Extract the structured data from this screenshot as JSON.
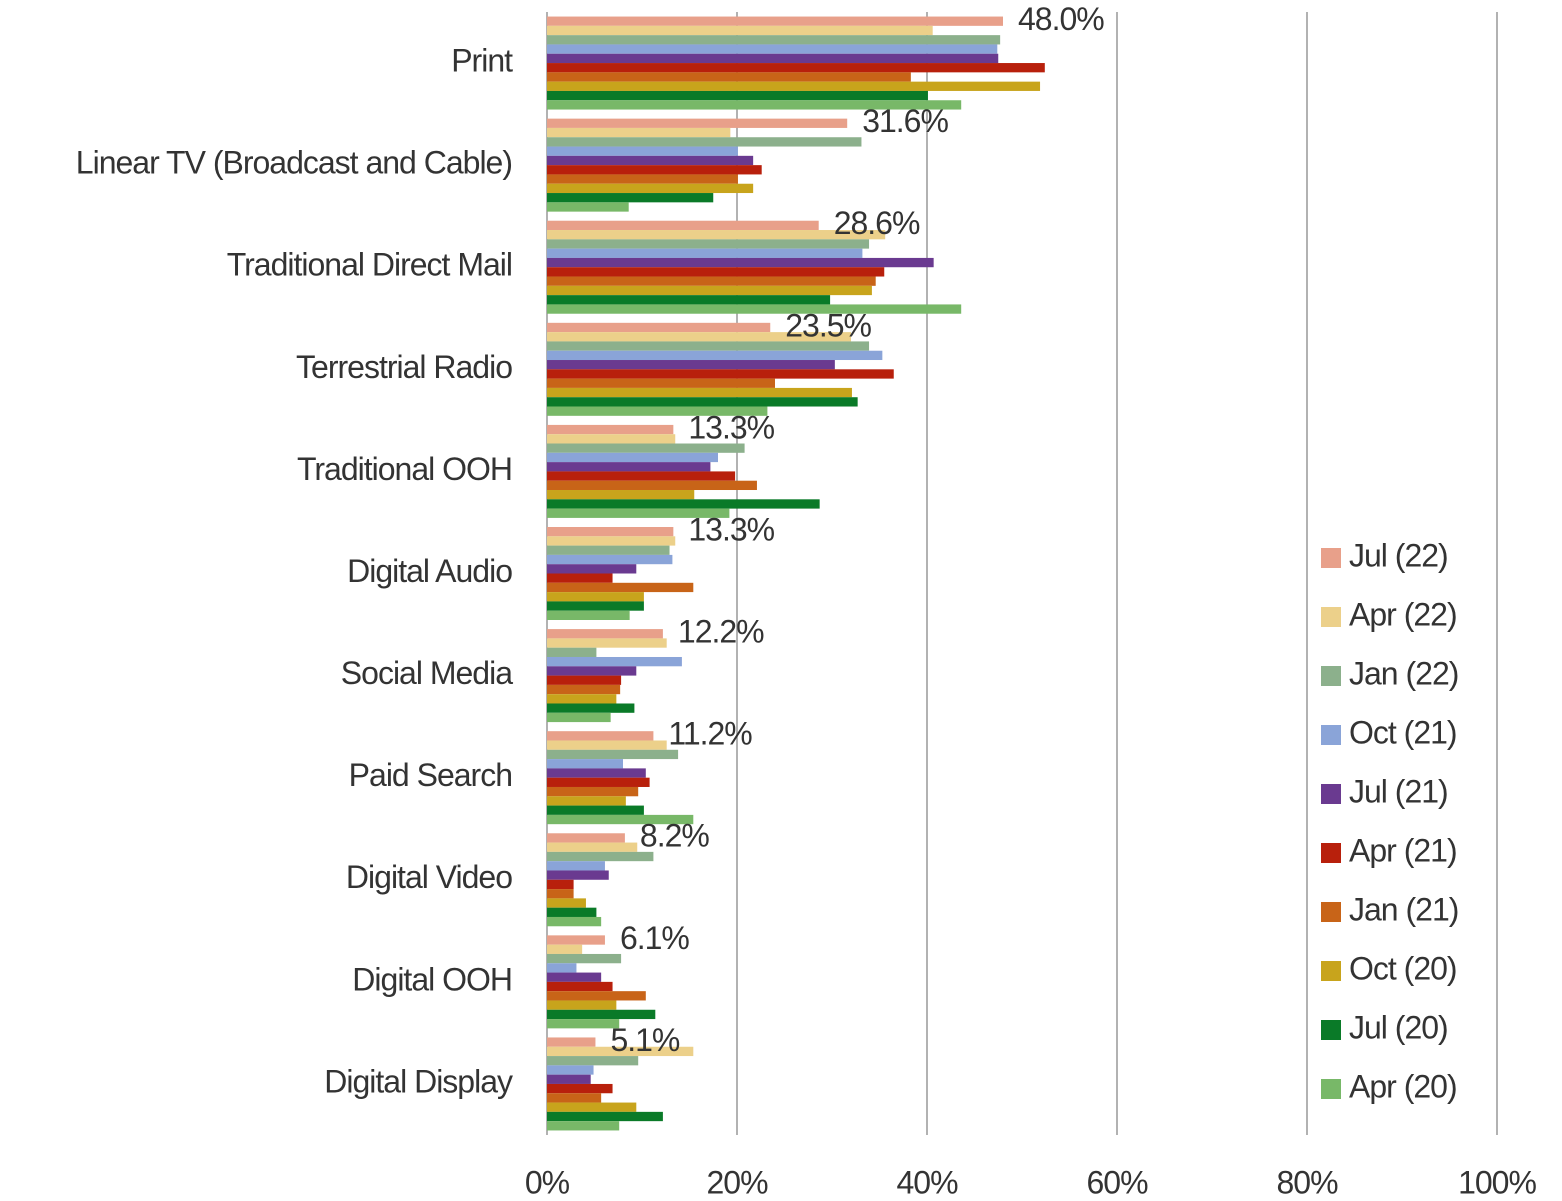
{
  "chart_data": {
    "type": "bar",
    "orientation": "horizontal",
    "categories": [
      "Print",
      "Linear TV (Broadcast and Cable)",
      "Traditional Direct Mail",
      "Terrestrial Radio",
      "Traditional OOH",
      "Digital Audio",
      "Social Media",
      "Paid Search",
      "Digital Video",
      "Digital OOH",
      "Digital Display"
    ],
    "series": [
      {
        "name": "Jul (22)",
        "color": "#e8a08a",
        "values": [
          48.0,
          31.6,
          28.6,
          23.5,
          13.3,
          13.3,
          12.2,
          11.2,
          8.2,
          6.1,
          5.1
        ],
        "value_labels": [
          "48.0%",
          "31.6%",
          "28.6%",
          "23.5%",
          "13.3%",
          "13.3%",
          "12.2%",
          "11.2%",
          "8.2%",
          "6.1%",
          "5.1%"
        ]
      },
      {
        "name": "Apr (22)",
        "color": "#ecd08a",
        "values": [
          40.6,
          19.3,
          35.6,
          32.0,
          13.5,
          13.5,
          12.6,
          12.6,
          9.5,
          3.7,
          15.4
        ]
      },
      {
        "name": "Jan (22)",
        "color": "#8cb08c",
        "values": [
          47.7,
          33.1,
          33.9,
          33.9,
          20.8,
          12.9,
          5.2,
          13.8,
          11.2,
          7.8,
          9.6
        ]
      },
      {
        "name": "Oct (21)",
        "color": "#8aa4d8",
        "values": [
          47.4,
          20.1,
          33.2,
          35.3,
          18.0,
          13.2,
          14.2,
          8.0,
          6.1,
          3.1,
          4.9
        ]
      },
      {
        "name": "Jul (21)",
        "color": "#6a3a90",
        "values": [
          47.5,
          21.7,
          40.7,
          30.3,
          17.2,
          9.4,
          9.4,
          10.4,
          6.5,
          5.7,
          4.6
        ]
      },
      {
        "name": "Apr (21)",
        "color": "#b8200c",
        "values": [
          52.4,
          22.6,
          35.5,
          36.5,
          19.8,
          6.9,
          7.8,
          10.8,
          2.8,
          6.9,
          6.9
        ]
      },
      {
        "name": "Jan (21)",
        "color": "#c86418",
        "values": [
          38.3,
          20.1,
          34.6,
          24.0,
          22.1,
          15.4,
          7.7,
          9.6,
          2.8,
          10.4,
          5.7
        ]
      },
      {
        "name": "Oct (20)",
        "color": "#c8a41c",
        "values": [
          51.9,
          21.7,
          34.2,
          32.1,
          15.5,
          10.2,
          7.3,
          8.3,
          4.1,
          7.3,
          9.4
        ]
      },
      {
        "name": "Jul (20)",
        "color": "#0a7a28",
        "values": [
          40.1,
          17.5,
          29.8,
          32.7,
          28.7,
          10.2,
          9.2,
          10.2,
          5.2,
          11.4,
          12.2
        ]
      },
      {
        "name": "Apr (20)",
        "color": "#78b868",
        "values": [
          43.6,
          8.6,
          43.6,
          23.2,
          19.2,
          8.7,
          6.7,
          15.4,
          5.7,
          7.6,
          7.6
        ]
      }
    ],
    "xlim": [
      0,
      100
    ],
    "xticks": [
      {
        "value": 0,
        "label": "0%"
      },
      {
        "value": 20,
        "label": "20%"
      },
      {
        "value": 40,
        "label": "40%"
      },
      {
        "value": 60,
        "label": "60%"
      },
      {
        "value": 80,
        "label": "80%"
      },
      {
        "value": 100,
        "label": "100%"
      }
    ],
    "grid": true,
    "legend": "right"
  }
}
